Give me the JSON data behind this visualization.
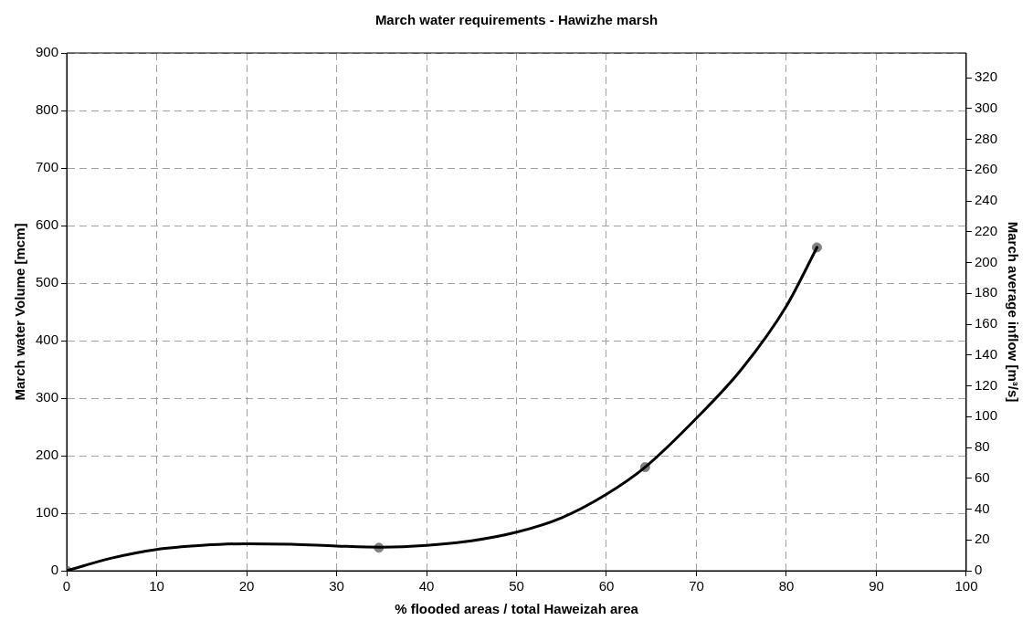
{
  "chart_data": {
    "type": "scatter",
    "title": "March water requirements - Hawizhe marsh",
    "xlabel": "% flooded areas / total Haweizah area",
    "ylabel": "March water Volume [mcm]",
    "y2label": "March average inflow [m³/s]",
    "series": [
      {
        "color": "#808080",
        "marker": "circle",
        "x": [
          0,
          34.7,
          64.3,
          83.4
        ],
        "values": [
          0,
          40,
          180,
          562
        ]
      },
      {
        "type": "line",
        "color": "#000000",
        "marker": "none",
        "line_style": "solid",
        "x": [
          0,
          5,
          10,
          15,
          20,
          25,
          30,
          35,
          40,
          45,
          50,
          55,
          60,
          64.3,
          70,
          75,
          80,
          83.4
        ],
        "values": [
          0,
          22,
          37,
          44,
          47,
          46,
          43,
          41,
          44,
          52,
          67,
          92,
          133,
          180,
          265,
          350,
          460,
          562
        ]
      }
    ],
    "xlim": [
      0,
      100
    ],
    "xticks": [
      0,
      10,
      20,
      30,
      40,
      50,
      60,
      70,
      80,
      90,
      100
    ],
    "ylim": [
      0,
      900
    ],
    "yticks": [
      0,
      100,
      200,
      300,
      400,
      500,
      600,
      700,
      800,
      900
    ],
    "y2lim": [
      0,
      336
    ],
    "y2ticks": [
      0,
      20,
      40,
      60,
      80,
      100,
      120,
      140,
      160,
      180,
      200,
      220,
      240,
      260,
      280,
      300,
      320
    ],
    "grid": true,
    "legend": false
  }
}
